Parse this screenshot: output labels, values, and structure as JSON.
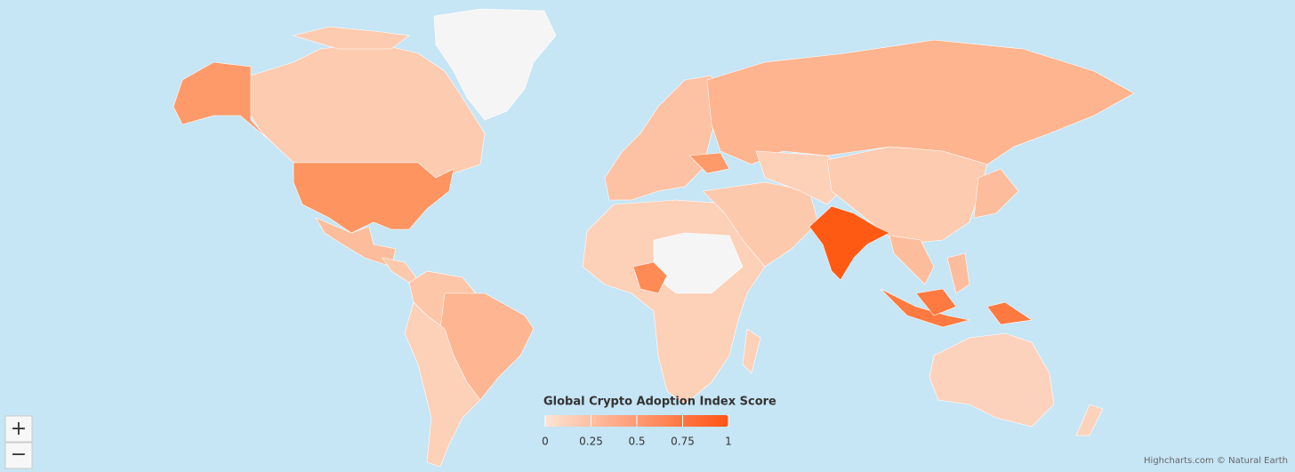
{
  "map": {
    "color_axis": {
      "title": "Global Crypto Adoption Index Score",
      "min": 0,
      "max": 1,
      "ticks": [
        0,
        0.25,
        0.5,
        0.75,
        1
      ],
      "min_color": "#fde3d3",
      "max_color": "#ff5214"
    },
    "zoom_controls": {
      "zoom_in": "+",
      "zoom_out": "−"
    },
    "credits": "Highcharts.com © Natural Earth"
  }
}
